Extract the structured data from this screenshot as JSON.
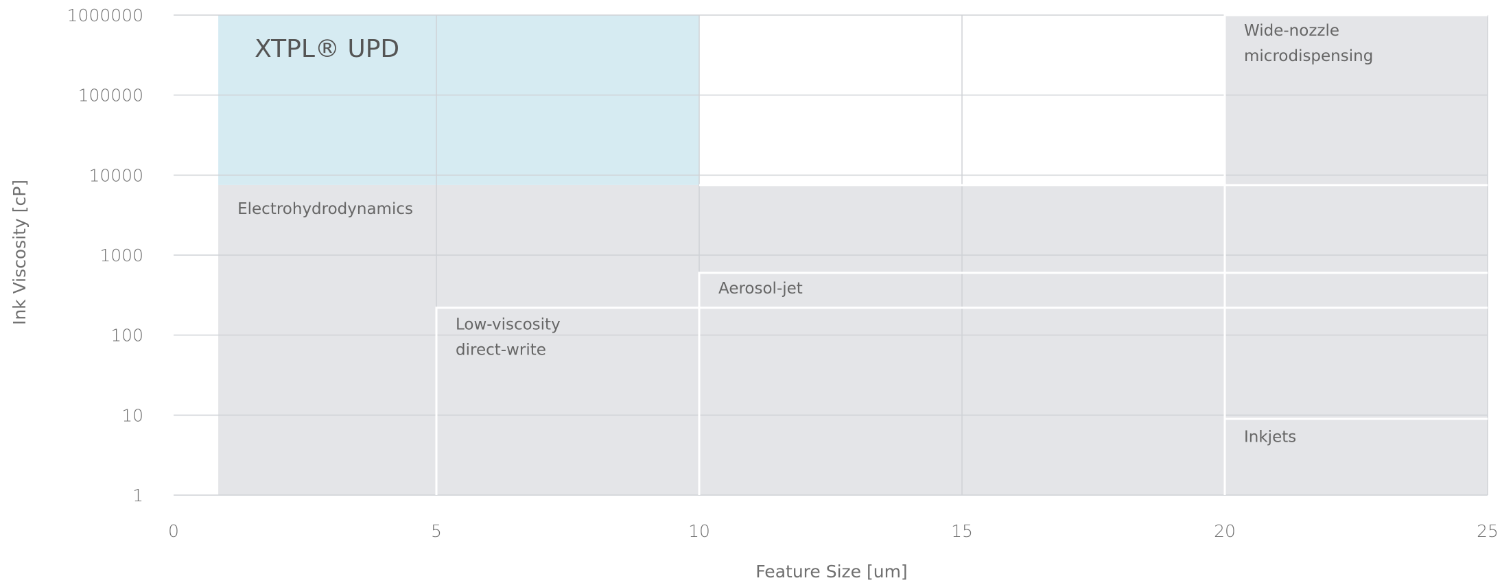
{
  "chart_data": {
    "type": "area",
    "xlabel": "Feature Size [um]",
    "ylabel": "Ink Viscosity [cP]",
    "xlim": [
      0,
      25
    ],
    "ylim": [
      1,
      1000000
    ],
    "yscale": "log",
    "xticks": [
      "0",
      "5",
      "10",
      "15",
      "20",
      "25"
    ],
    "yticks": [
      "1",
      "10",
      "100",
      "1000",
      "10000",
      "100000",
      "1000000"
    ],
    "grid": true,
    "colors": {
      "technology": "#e4e5e8",
      "highlight": "#d6ebf2",
      "grid": "#cfd2d6",
      "boundary": "#ffffff"
    },
    "regions": [
      {
        "name": "Electrohydrodynamics",
        "label": [
          "Electrohydrodynamics"
        ],
        "x": [
          0.85,
          25
        ],
        "y": [
          1,
          7500
        ],
        "color": "technology"
      },
      {
        "name": "Low-viscosity direct-write",
        "label": [
          "Low-viscosity",
          "direct-write"
        ],
        "x": [
          5,
          25
        ],
        "y": [
          1,
          220
        ],
        "color": "technology"
      },
      {
        "name": "Aerosol-jet",
        "label": [
          "Aerosol-jet"
        ],
        "x": [
          10,
          25
        ],
        "y": [
          1,
          600
        ],
        "color": "technology"
      },
      {
        "name": "Wide-nozzle microdispensing",
        "label": [
          "Wide-nozzle",
          "microdispensing"
        ],
        "x": [
          20,
          25
        ],
        "y": [
          1,
          1000000
        ],
        "color": "technology"
      },
      {
        "name": "Inkjets",
        "label": [
          "Inkjets"
        ],
        "x": [
          20,
          25
        ],
        "y": [
          1,
          9
        ],
        "color": "technology"
      },
      {
        "name": "XTPL® UPD",
        "label": [
          "XTPL® UPD"
        ],
        "x": [
          0.85,
          10
        ],
        "y": [
          7500,
          1000000
        ],
        "color": "highlight"
      }
    ]
  }
}
